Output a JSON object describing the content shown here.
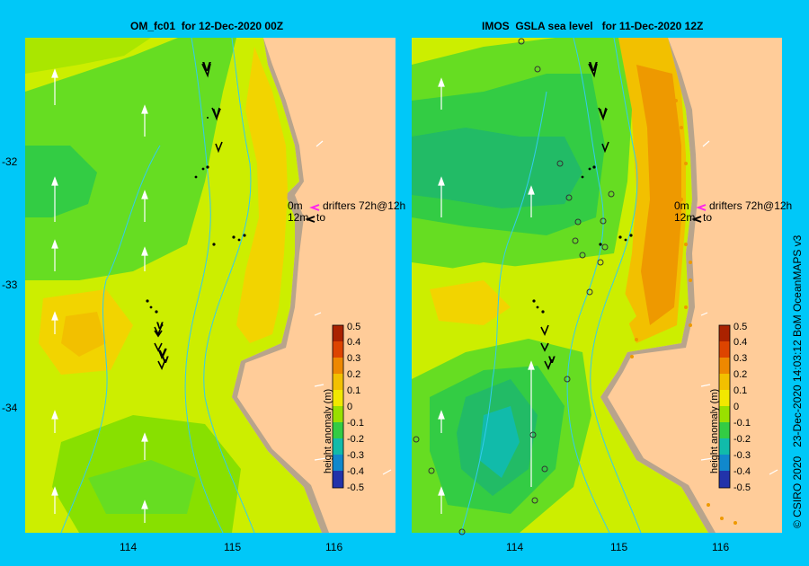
{
  "left_panel": {
    "title": "OM_fc01  for 12-Dec-2020 00Z"
  },
  "right_panel": {
    "title": "IMOS  GSLA sea level   for 11-Dec-2020 12Z"
  },
  "y_ticks": [
    "-32",
    "-33",
    "-34"
  ],
  "x_ticks": [
    "114",
    "115",
    "116"
  ],
  "legend": {
    "line1_depth": "0m",
    "line1_text": "drifters 72h@12h",
    "line2_depth": "12m",
    "line2_text": "to"
  },
  "colorbar": {
    "title": "height anomaly (m)",
    "ticks": [
      "0.5",
      "0.4",
      "0.3",
      "0.2",
      "0.1",
      "0",
      "-0.1",
      "-0.2",
      "-0.3",
      "-0.4",
      "-0.5"
    ]
  },
  "credit": "© CSIRO 2020   23-Dec-2020 14:03:12 BoM OceanMAPS v3",
  "colors": {
    "background": "#00c8f8",
    "land": "#ffcc99",
    "coast": "#b8a48c",
    "isobath": "#33ccee"
  }
}
